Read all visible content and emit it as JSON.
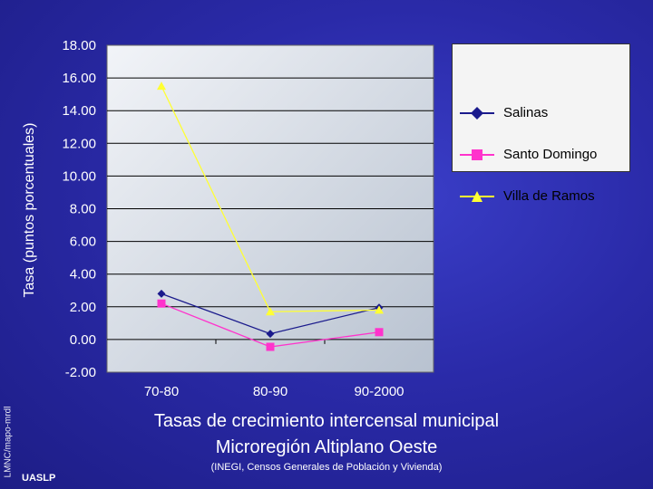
{
  "chart_data": {
    "type": "line",
    "categories": [
      "70-80",
      "80-90",
      "90-2000"
    ],
    "series": [
      {
        "name": "Salinas",
        "values": [
          2.8,
          0.35,
          1.95
        ],
        "color": "#1a1a8c",
        "marker": "diamond"
      },
      {
        "name": "Santo Domingo",
        "values": [
          2.2,
          -0.45,
          0.45
        ],
        "color": "#ff33cc",
        "marker": "square"
      },
      {
        "name": "Villa de Ramos",
        "values": [
          15.5,
          1.7,
          1.8
        ],
        "color": "#ffff33",
        "marker": "triangle"
      }
    ],
    "ylabel": "Tasa (puntos porcentuales)",
    "xlabel": "",
    "ylim": [
      -2.0,
      18.0
    ],
    "yticks": [
      "18.00",
      "16.00",
      "14.00",
      "12.00",
      "10.00",
      "8.00",
      "6.00",
      "4.00",
      "2.00",
      "0.00",
      "-2.00"
    ],
    "grid": true,
    "legend_position": "right"
  },
  "title": {
    "line1": "Tasas de crecimiento intercensal municipal",
    "line2": "Microregión Altiplano Oeste",
    "source": "(INEGI, Censos Generales de Población y Vivienda)"
  },
  "side_text": "LMNC/mapo-mrdl",
  "logo_text": "UASLP"
}
